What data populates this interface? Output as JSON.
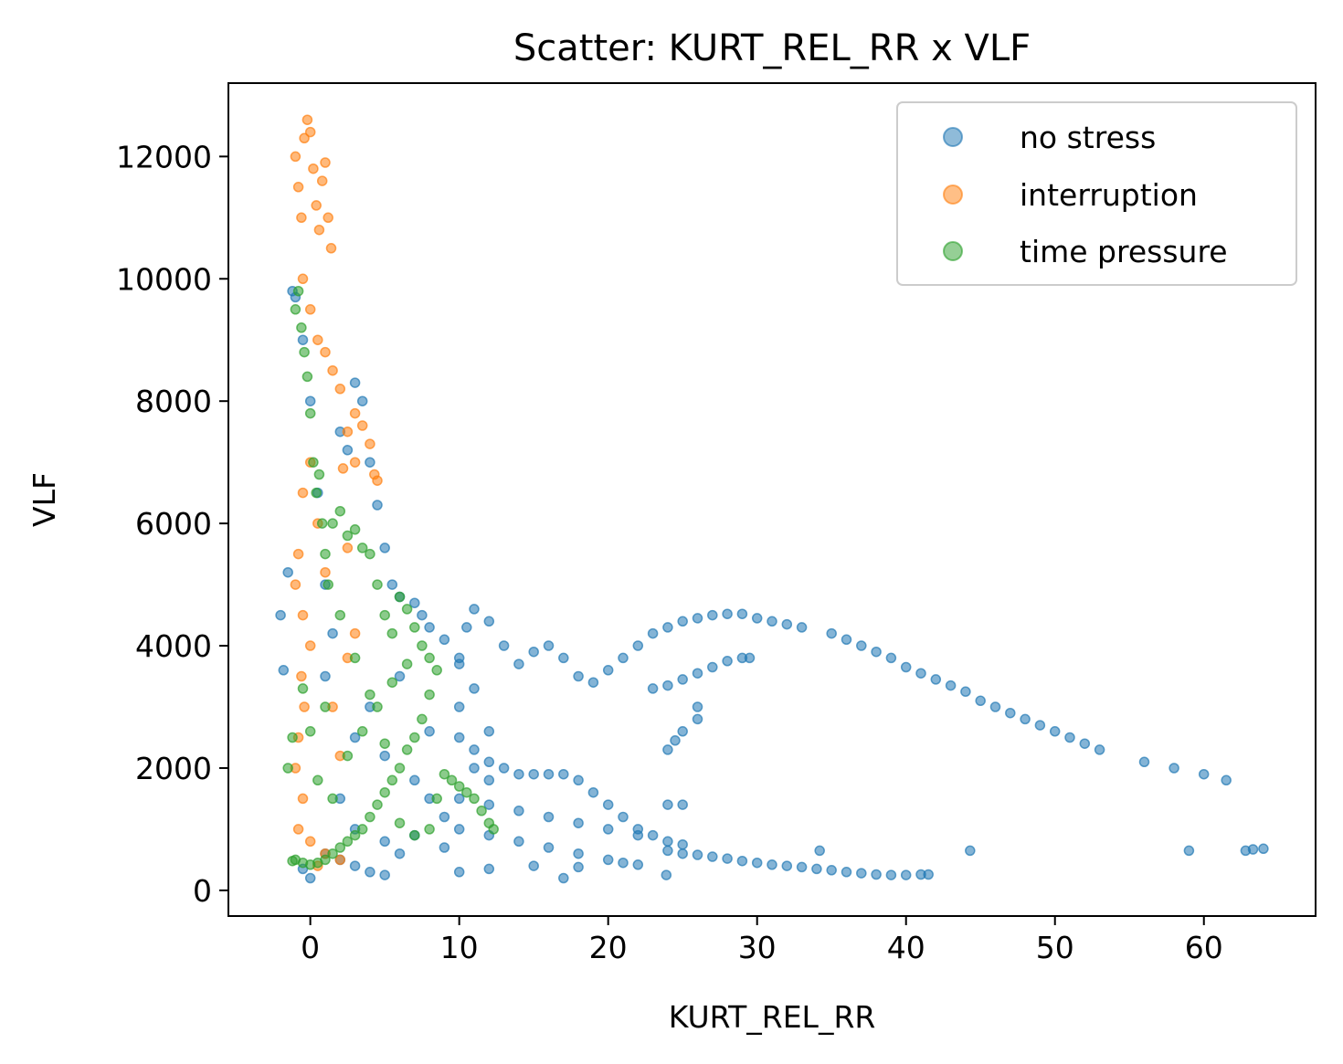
{
  "chart_data": {
    "type": "scatter",
    "title": "Scatter: KURT_REL_RR x VLF",
    "xlabel": "KURT_REL_RR",
    "ylabel": "VLF",
    "xlim": [
      -5.5,
      67.5
    ],
    "ylim": [
      -420,
      13200
    ],
    "xticks": [
      0,
      10,
      20,
      30,
      40,
      50,
      60
    ],
    "yticks": [
      0,
      2000,
      4000,
      6000,
      8000,
      10000,
      12000
    ],
    "grid": false,
    "legend": "top-right",
    "series": [
      {
        "name": "no stress",
        "color": "#1f77b4",
        "points": [
          [
            -2,
            4500
          ],
          [
            -1.8,
            3600
          ],
          [
            -1.5,
            5200
          ],
          [
            -1.2,
            9800
          ],
          [
            -1,
            9700
          ],
          [
            -0.5,
            9000
          ],
          [
            0,
            8000
          ],
          [
            0.5,
            6500
          ],
          [
            1,
            5000
          ],
          [
            1.5,
            4200
          ],
          [
            2,
            7500
          ],
          [
            2.5,
            7200
          ],
          [
            3,
            8300
          ],
          [
            3.5,
            8000
          ],
          [
            4,
            7000
          ],
          [
            4.5,
            6300
          ],
          [
            5,
            5600
          ],
          [
            5.5,
            5000
          ],
          [
            6,
            4800
          ],
          [
            7,
            4700
          ],
          [
            7.5,
            4500
          ],
          [
            8,
            4300
          ],
          [
            9,
            4100
          ],
          [
            10,
            3800
          ],
          [
            10.5,
            4300
          ],
          [
            11,
            4600
          ],
          [
            12,
            4400
          ],
          [
            13,
            4000
          ],
          [
            14,
            3700
          ],
          [
            15,
            3900
          ],
          [
            16,
            4000
          ],
          [
            17,
            3800
          ],
          [
            18,
            3500
          ],
          [
            19,
            3400
          ],
          [
            20,
            3600
          ],
          [
            21,
            3800
          ],
          [
            22,
            4000
          ],
          [
            23,
            4200
          ],
          [
            24,
            4300
          ],
          [
            25,
            4400
          ],
          [
            26,
            4450
          ],
          [
            27,
            4500
          ],
          [
            28,
            4520
          ],
          [
            29,
            4520
          ],
          [
            30,
            4450
          ],
          [
            31,
            4400
          ],
          [
            32,
            4350
          ],
          [
            33,
            4300
          ],
          [
            35,
            4200
          ],
          [
            36,
            4100
          ],
          [
            37,
            4000
          ],
          [
            38,
            3900
          ],
          [
            39,
            3800
          ],
          [
            40,
            3650
          ],
          [
            41,
            3550
          ],
          [
            42,
            3450
          ],
          [
            43,
            3350
          ],
          [
            44,
            3250
          ],
          [
            45,
            3100
          ],
          [
            46,
            3000
          ],
          [
            47,
            2900
          ],
          [
            48,
            2800
          ],
          [
            49,
            2700
          ],
          [
            50,
            2600
          ],
          [
            51,
            2500
          ],
          [
            52,
            2400
          ],
          [
            53,
            2300
          ],
          [
            56,
            2100
          ],
          [
            58,
            2000
          ],
          [
            60,
            1900
          ],
          [
            61.5,
            1800
          ],
          [
            23,
            3300
          ],
          [
            24,
            3350
          ],
          [
            25,
            3450
          ],
          [
            26,
            3550
          ],
          [
            27,
            3650
          ],
          [
            28,
            3750
          ],
          [
            29,
            3800
          ],
          [
            29.5,
            3800
          ],
          [
            26,
            3000
          ],
          [
            26,
            2800
          ],
          [
            25,
            2600
          ],
          [
            24.5,
            2450
          ],
          [
            24,
            2300
          ],
          [
            10,
            2500
          ],
          [
            11,
            2300
          ],
          [
            12,
            2100
          ],
          [
            13,
            2000
          ],
          [
            14,
            1900
          ],
          [
            15,
            1900
          ],
          [
            16,
            1900
          ],
          [
            17,
            1900
          ],
          [
            18,
            1800
          ],
          [
            19,
            1600
          ],
          [
            20,
            1400
          ],
          [
            21,
            1200
          ],
          [
            22,
            1000
          ],
          [
            23,
            900
          ],
          [
            24,
            1400
          ],
          [
            25,
            1400
          ],
          [
            10,
            1500
          ],
          [
            12,
            1400
          ],
          [
            14,
            1300
          ],
          [
            16,
            1200
          ],
          [
            18,
            1100
          ],
          [
            20,
            1000
          ],
          [
            22,
            900
          ],
          [
            24,
            800
          ],
          [
            25,
            750
          ],
          [
            10,
            1000
          ],
          [
            12,
            900
          ],
          [
            14,
            800
          ],
          [
            16,
            700
          ],
          [
            18,
            600
          ],
          [
            20,
            500
          ],
          [
            21,
            450
          ],
          [
            22,
            420
          ],
          [
            24,
            650
          ],
          [
            25,
            600
          ],
          [
            26,
            580
          ],
          [
            27,
            550
          ],
          [
            28,
            520
          ],
          [
            29,
            480
          ],
          [
            30,
            450
          ],
          [
            31,
            420
          ],
          [
            32,
            400
          ],
          [
            33,
            380
          ],
          [
            34,
            350
          ],
          [
            35,
            330
          ],
          [
            36,
            300
          ],
          [
            37,
            280
          ],
          [
            38,
            260
          ],
          [
            39,
            250
          ],
          [
            40,
            250
          ],
          [
            41,
            260
          ],
          [
            41.5,
            260
          ],
          [
            34.2,
            650
          ],
          [
            44.3,
            650
          ],
          [
            59,
            650
          ],
          [
            62.8,
            650
          ],
          [
            63.3,
            670
          ],
          [
            64,
            680
          ],
          [
            23.9,
            250
          ],
          [
            10,
            300
          ],
          [
            12,
            350
          ],
          [
            15,
            400
          ],
          [
            17,
            200
          ],
          [
            18,
            380
          ],
          [
            2,
            1500
          ],
          [
            3,
            2500
          ],
          [
            4,
            3000
          ],
          [
            5,
            2200
          ],
          [
            6,
            3500
          ],
          [
            7,
            1800
          ],
          [
            8,
            2600
          ],
          [
            9,
            1200
          ],
          [
            1,
            600
          ],
          [
            2,
            500
          ],
          [
            3,
            400
          ],
          [
            4,
            300
          ],
          [
            5,
            250
          ],
          [
            0,
            200
          ],
          [
            -0.5,
            350
          ],
          [
            1,
            3500
          ],
          [
            3,
            1000
          ],
          [
            5,
            800
          ],
          [
            7,
            900
          ],
          [
            9,
            700
          ],
          [
            6,
            600
          ],
          [
            8,
            1500
          ],
          [
            10,
            3000
          ],
          [
            11,
            2000
          ],
          [
            12,
            2600
          ],
          [
            12,
            1800
          ],
          [
            11,
            3300
          ],
          [
            10,
            3700
          ]
        ]
      },
      {
        "name": "interruption",
        "color": "#ff7f0e",
        "points": [
          [
            -1,
            12000
          ],
          [
            -0.8,
            11500
          ],
          [
            -0.6,
            11000
          ],
          [
            -0.4,
            12300
          ],
          [
            -0.2,
            12600
          ],
          [
            0,
            12400
          ],
          [
            0.2,
            11800
          ],
          [
            0.4,
            11200
          ],
          [
            0.6,
            10800
          ],
          [
            0.8,
            11600
          ],
          [
            1,
            11900
          ],
          [
            1.2,
            11000
          ],
          [
            1.4,
            10500
          ],
          [
            -0.5,
            10000
          ],
          [
            0,
            9500
          ],
          [
            0.5,
            9000
          ],
          [
            1,
            8800
          ],
          [
            1.5,
            8500
          ],
          [
            2,
            8200
          ],
          [
            2.5,
            7500
          ],
          [
            3,
            7800
          ],
          [
            3.5,
            7600
          ],
          [
            4,
            7300
          ],
          [
            4.3,
            6800
          ],
          [
            4.5,
            6700
          ],
          [
            2.2,
            6900
          ],
          [
            3,
            7000
          ],
          [
            0,
            7000
          ],
          [
            -0.5,
            6500
          ],
          [
            0.5,
            6000
          ],
          [
            -0.8,
            5500
          ],
          [
            -1,
            5000
          ],
          [
            -0.5,
            4500
          ],
          [
            0,
            4000
          ],
          [
            -0.6,
            3500
          ],
          [
            -0.4,
            3000
          ],
          [
            -0.8,
            2500
          ],
          [
            -1,
            2000
          ],
          [
            -0.5,
            1500
          ],
          [
            -0.8,
            1000
          ],
          [
            0,
            800
          ],
          [
            1,
            600
          ],
          [
            2,
            500
          ],
          [
            0.5,
            400
          ],
          [
            1.5,
            3000
          ],
          [
            2,
            2200
          ],
          [
            2.5,
            3800
          ],
          [
            3,
            4200
          ],
          [
            1,
            5200
          ],
          [
            2.5,
            5600
          ]
        ]
      },
      {
        "name": "time pressure",
        "color": "#2ca02c",
        "points": [
          [
            -1.5,
            2000
          ],
          [
            -1.2,
            2500
          ],
          [
            -1,
            9500
          ],
          [
            -0.8,
            9800
          ],
          [
            -0.6,
            9200
          ],
          [
            -0.4,
            8800
          ],
          [
            -0.2,
            8400
          ],
          [
            0,
            7800
          ],
          [
            0.2,
            7000
          ],
          [
            0.4,
            6500
          ],
          [
            0.6,
            6800
          ],
          [
            0.8,
            6000
          ],
          [
            1,
            5500
          ],
          [
            1.2,
            5000
          ],
          [
            1.5,
            6000
          ],
          [
            2,
            6200
          ],
          [
            2.5,
            5800
          ],
          [
            3,
            5900
          ],
          [
            3.5,
            5600
          ],
          [
            4,
            5500
          ],
          [
            4.5,
            5000
          ],
          [
            5,
            4500
          ],
          [
            5.5,
            4200
          ],
          [
            6,
            4800
          ],
          [
            6.5,
            4600
          ],
          [
            7,
            4300
          ],
          [
            7.5,
            4000
          ],
          [
            8,
            3800
          ],
          [
            8.5,
            3600
          ],
          [
            8,
            3200
          ],
          [
            7.5,
            2800
          ],
          [
            7,
            2500
          ],
          [
            6.5,
            2300
          ],
          [
            6,
            2000
          ],
          [
            5.5,
            1800
          ],
          [
            5,
            1600
          ],
          [
            4.5,
            1400
          ],
          [
            4,
            1200
          ],
          [
            3.5,
            1000
          ],
          [
            3,
            900
          ],
          [
            2.5,
            800
          ],
          [
            2,
            700
          ],
          [
            1.5,
            600
          ],
          [
            1,
            500
          ],
          [
            0.5,
            450
          ],
          [
            0,
            420
          ],
          [
            -0.5,
            450
          ],
          [
            -1,
            500
          ],
          [
            -1.2,
            480
          ],
          [
            9,
            1900
          ],
          [
            9.5,
            1800
          ],
          [
            10,
            1700
          ],
          [
            10.5,
            1600
          ],
          [
            11,
            1500
          ],
          [
            11.5,
            1300
          ],
          [
            12,
            1100
          ],
          [
            12.3,
            1000
          ],
          [
            8.5,
            1500
          ],
          [
            8,
            1000
          ],
          [
            7,
            900
          ],
          [
            6,
            1100
          ],
          [
            5,
            2400
          ],
          [
            4,
            3200
          ],
          [
            3,
            3800
          ],
          [
            2,
            4500
          ],
          [
            1,
            3000
          ],
          [
            0,
            2600
          ],
          [
            -0.5,
            3300
          ],
          [
            0.5,
            1800
          ],
          [
            1.5,
            1500
          ],
          [
            2.5,
            2200
          ],
          [
            3.5,
            2600
          ],
          [
            4.5,
            3000
          ],
          [
            5.5,
            3400
          ],
          [
            6.5,
            3700
          ]
        ]
      }
    ]
  }
}
